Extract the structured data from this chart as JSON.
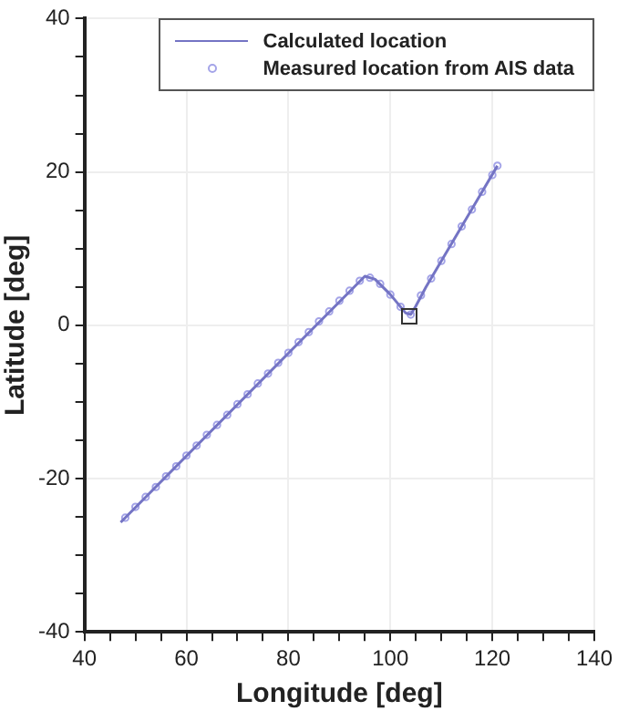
{
  "chart_data": {
    "type": "line",
    "xlabel": "Longitude [deg]",
    "ylabel": "Latitude [deg]",
    "xlim": [
      40,
      140
    ],
    "ylim": [
      -40,
      40
    ],
    "xticks": [
      40,
      {
        "value": 45,
        "label": null
      },
      {
        "value": 50,
        "label": null
      },
      {
        "value": 55,
        "label": null
      },
      60,
      {
        "value": 65,
        "label": null
      },
      {
        "value": 70,
        "label": null
      },
      {
        "value": 75,
        "label": null
      },
      80,
      {
        "value": 85,
        "label": null
      },
      {
        "value": 90,
        "label": null
      },
      {
        "value": 95,
        "label": null
      },
      100,
      {
        "value": 105,
        "label": null
      },
      {
        "value": 110,
        "label": null
      },
      {
        "value": 115,
        "label": null
      },
      120,
      {
        "value": 125,
        "label": null
      },
      {
        "value": 130,
        "label": null
      },
      {
        "value": 135,
        "label": null
      },
      140
    ],
    "yticks": [
      -40,
      {
        "value": -35,
        "label": null
      },
      {
        "value": -30,
        "label": null
      },
      {
        "value": -25,
        "label": null
      },
      -20,
      {
        "value": -15,
        "label": null
      },
      {
        "value": -10,
        "label": null
      },
      {
        "value": -5,
        "label": null
      },
      0,
      {
        "value": 5,
        "label": null
      },
      {
        "value": 10,
        "label": null
      },
      {
        "value": 15,
        "label": null
      },
      20,
      {
        "value": 25,
        "label": null
      },
      {
        "value": 30,
        "label": null
      },
      {
        "value": 35,
        "label": null
      },
      40
    ],
    "grid": true,
    "legend": "top right",
    "series": [
      {
        "name": "Calculated location",
        "type": "line",
        "color": "#7474c4",
        "marker": "none",
        "line_style": "solid",
        "x": [
          47.1,
          95,
          97,
          100,
          103,
          104,
          105,
          107,
          121
        ],
        "values": [
          -25.7,
          6.4,
          6.0,
          4.0,
          1.6,
          1.4,
          2.5,
          5.0,
          20.8
        ]
      },
      {
        "name": "Measured location from AIS data",
        "type": "scatter",
        "color": "#a4a4e8",
        "marker": "circle",
        "x": [
          48,
          50,
          52,
          54,
          56,
          58,
          60,
          62,
          64,
          66,
          68,
          70,
          72,
          74,
          76,
          78,
          80,
          82,
          84,
          86,
          88,
          90,
          92,
          94,
          96,
          98,
          100,
          102,
          104,
          106,
          108,
          110,
          112,
          114,
          116,
          118,
          120,
          121
        ],
        "values": [
          -25.1,
          -23.7,
          -22.4,
          -21.1,
          -19.7,
          -18.4,
          -17.0,
          -15.7,
          -14.3,
          -13.0,
          -11.7,
          -10.3,
          -9.0,
          -7.6,
          -6.3,
          -4.9,
          -3.6,
          -2.2,
          -0.9,
          0.5,
          1.8,
          3.2,
          4.5,
          5.8,
          6.2,
          5.4,
          4.0,
          2.4,
          1.4,
          3.9,
          6.1,
          8.4,
          10.6,
          12.9,
          15.1,
          17.4,
          19.6,
          20.8
        ]
      }
    ]
  }
}
